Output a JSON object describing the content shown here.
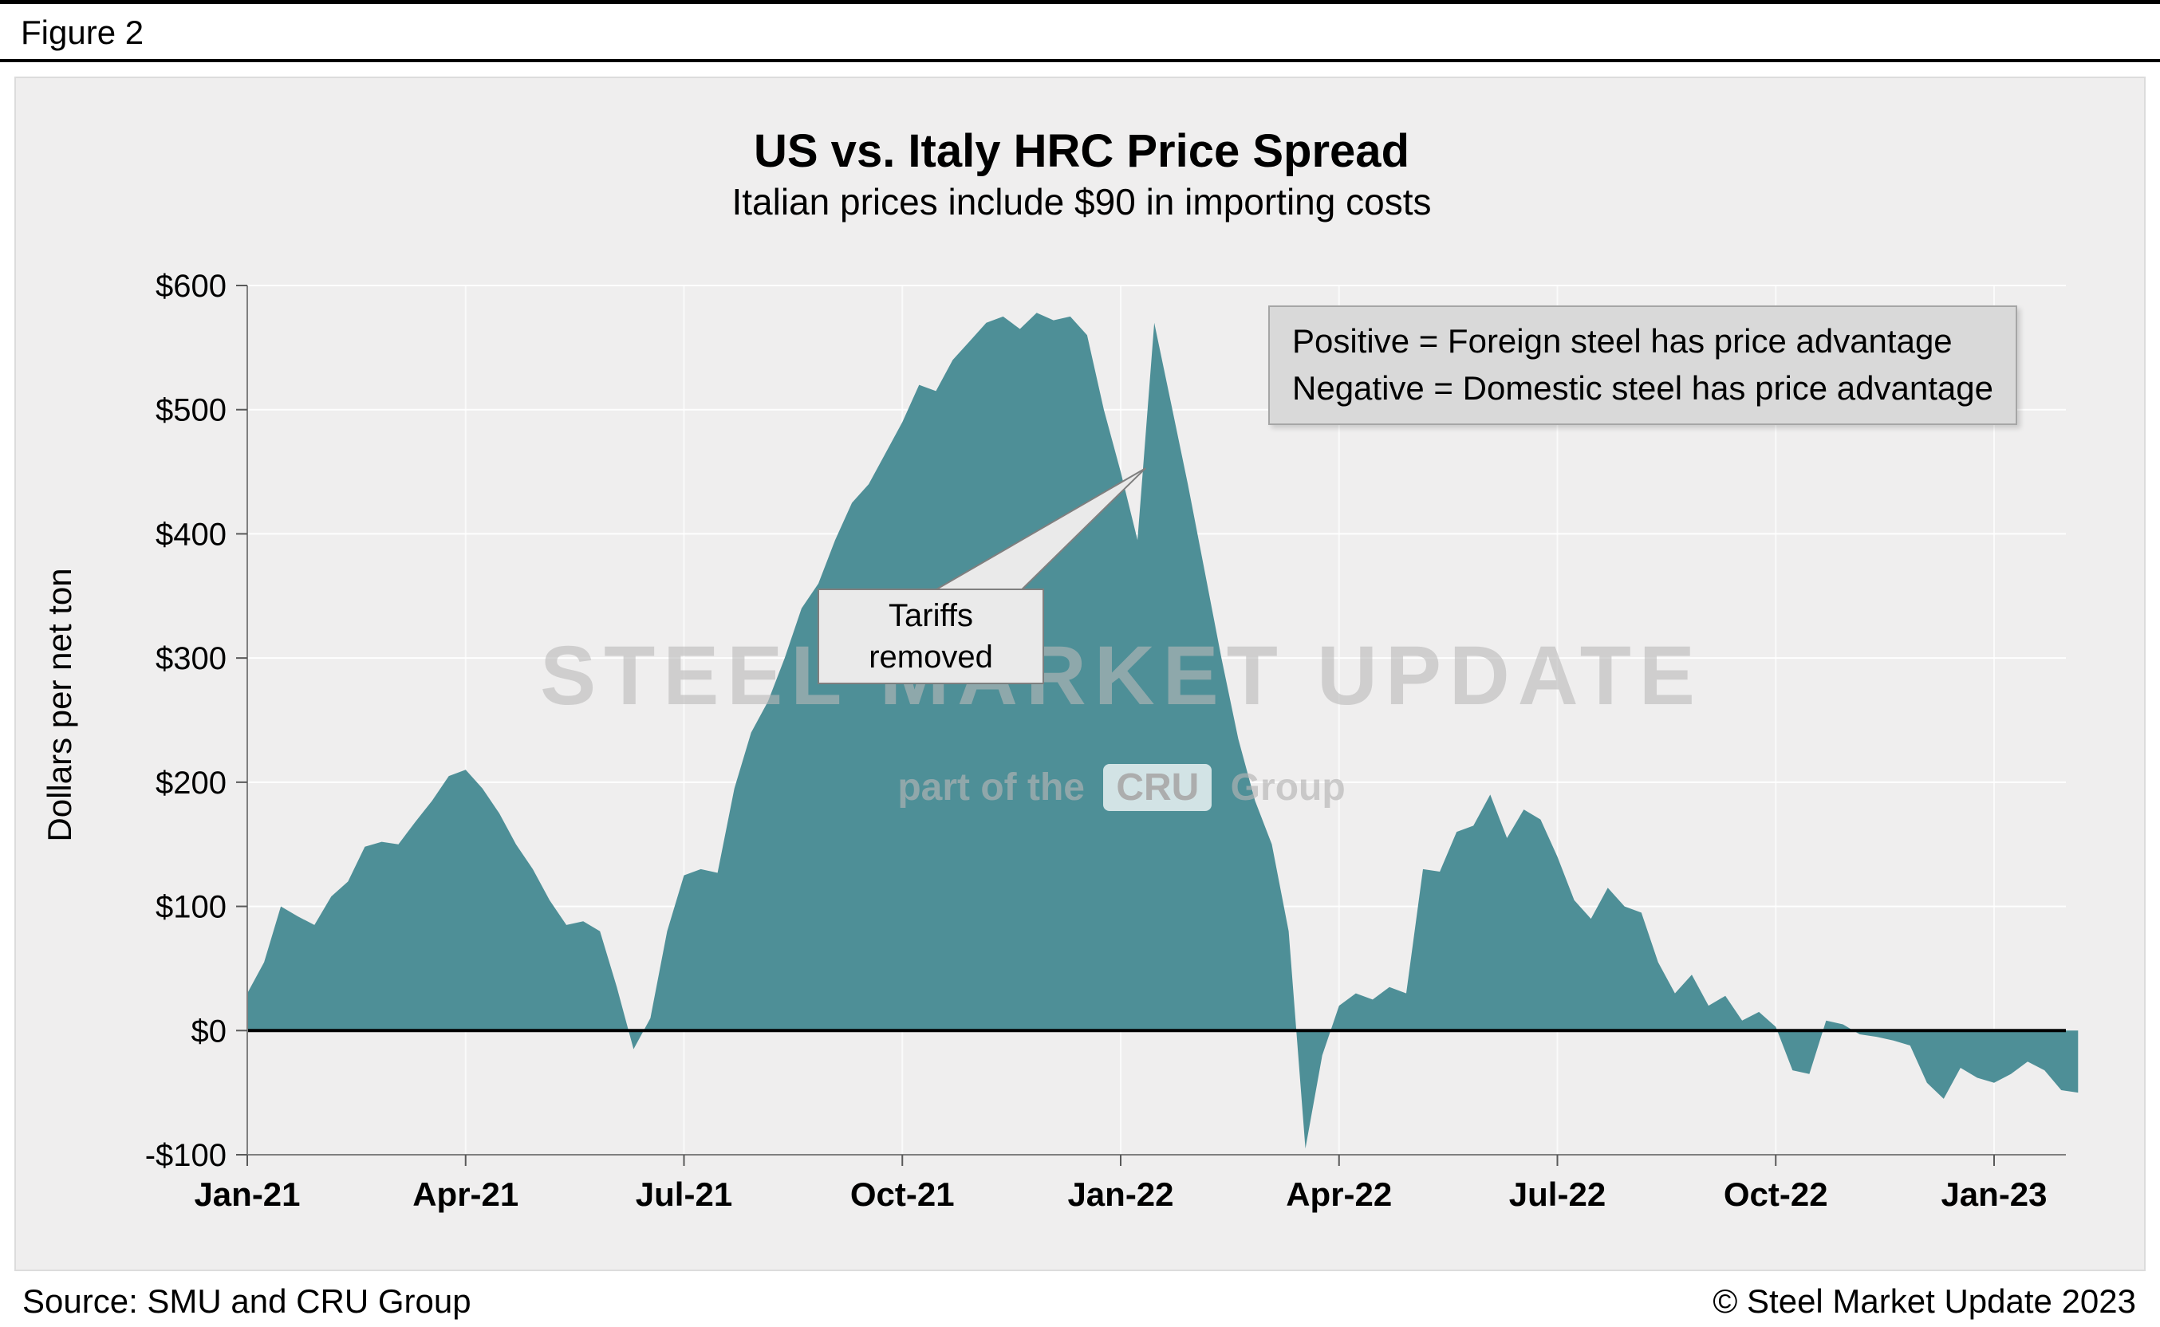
{
  "figure_label": "Figure 2",
  "title": "US vs. Italy HRC Price Spread",
  "subtitle": "Italian prices include $90 in importing costs",
  "legend_box": {
    "line1": "Positive = Foreign steel has price advantage",
    "line2": "Negative = Domestic steel has price advantage"
  },
  "annotation": {
    "line1": "Tariffs",
    "line2": "removed"
  },
  "watermark": {
    "line1": "STEEL MARKET UPDATE",
    "line2_prefix": "part of the",
    "line2_logo": "CRU",
    "line2_suffix": "Group"
  },
  "footer": {
    "source": "Source: SMU and CRU Group",
    "copyright": "© Steel Market Update 2023"
  },
  "colors": {
    "area": "#4e8f97",
    "panel_bg": "#efeeee",
    "legend_bg": "#d9d9d9",
    "zero_line": "#000000",
    "gridline": "#ffffff",
    "axis": "#7f7f7f"
  },
  "chart_data": {
    "type": "area",
    "title": "US vs. Italy HRC Price Spread",
    "subtitle": "Italian prices include $90 in importing costs",
    "ylabel": "Dollars per net ton",
    "xlabel": "",
    "baseline": 0,
    "ylim": [
      -100,
      600
    ],
    "y_ticks": [
      -100,
      0,
      100,
      200,
      300,
      400,
      500,
      600
    ],
    "y_tick_labels": [
      "-$100",
      "$0",
      "$100",
      "$200",
      "$300",
      "$400",
      "$500",
      "$600"
    ],
    "x_unit": "weeks since Jan-2021",
    "x_tick_weeks": [
      0,
      13,
      26,
      39,
      52,
      65,
      78,
      91,
      104
    ],
    "x_tick_labels": [
      "Jan-21",
      "Apr-21",
      "Jul-21",
      "Oct-21",
      "Jan-22",
      "Apr-22",
      "Jul-22",
      "Oct-22",
      "Jan-23"
    ],
    "annotation": {
      "text": "Tariffs removed",
      "points_to_week": 53,
      "points_to_value": 395
    },
    "values": [
      30,
      55,
      100,
      92,
      85,
      108,
      120,
      148,
      152,
      150,
      168,
      185,
      205,
      210,
      195,
      175,
      150,
      130,
      105,
      85,
      88,
      80,
      35,
      -15,
      10,
      80,
      125,
      130,
      127,
      195,
      240,
      265,
      300,
      340,
      360,
      395,
      425,
      440,
      465,
      490,
      520,
      515,
      540,
      555,
      570,
      575,
      565,
      578,
      572,
      575,
      560,
      500,
      450,
      395,
      570,
      505,
      440,
      370,
      300,
      235,
      185,
      150,
      80,
      -95,
      -20,
      20,
      30,
      25,
      35,
      30,
      130,
      128,
      160,
      165,
      190,
      155,
      178,
      170,
      140,
      105,
      90,
      115,
      100,
      95,
      55,
      30,
      45,
      20,
      28,
      8,
      15,
      3,
      -32,
      -35,
      8,
      5,
      -3,
      -5,
      -8,
      -12,
      -42,
      -55,
      -30,
      -38,
      -42,
      -35,
      -25,
      -32,
      -48,
      -50
    ]
  }
}
